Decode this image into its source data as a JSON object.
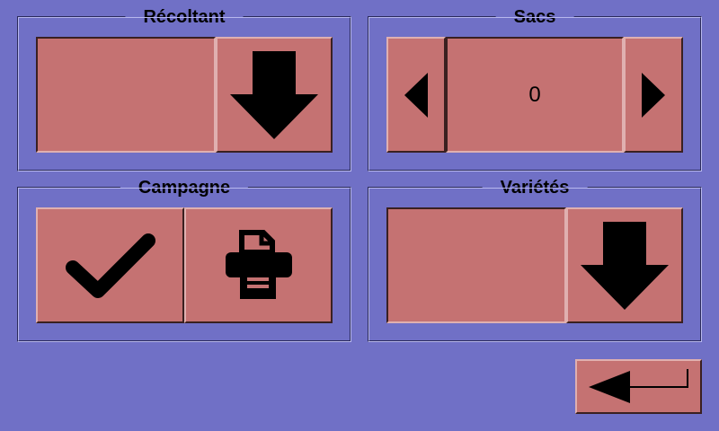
{
  "recoltant": {
    "label": "Récoltant",
    "value": "",
    "icon": "arrow-down-icon"
  },
  "sacs": {
    "label": "Sacs",
    "value": "0",
    "prev_icon": "triangle-left-icon",
    "next_icon": "triangle-right-icon"
  },
  "campagne": {
    "label": "Campagne",
    "validate_icon": "checkmark-icon",
    "print_icon": "printer-icon"
  },
  "varietes": {
    "label": "Variétés",
    "value": "",
    "icon": "arrow-down-icon"
  },
  "footer": {
    "back_icon": "arrow-left-return-icon"
  },
  "colors": {
    "background": "#7070c6",
    "button": "#c57272"
  }
}
